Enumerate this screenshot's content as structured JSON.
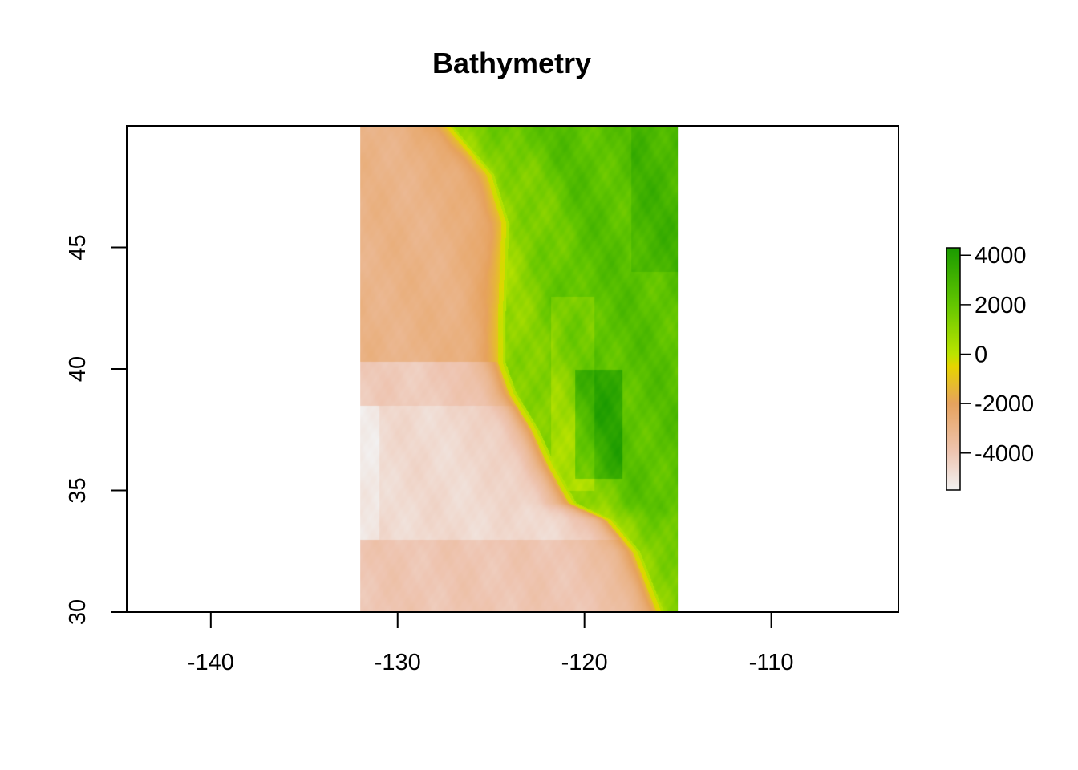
{
  "chart_data": {
    "type": "heatmap",
    "title": "Bathymetry",
    "xlabel": "",
    "ylabel": "",
    "xlim": [
      -144.5,
      -103.2
    ],
    "ylim": [
      30,
      50
    ],
    "x_ticks": [
      -140,
      -130,
      -120,
      -110
    ],
    "y_ticks": [
      30,
      35,
      40,
      45
    ],
    "raster_extent": {
      "xmin": -132,
      "xmax": -115,
      "ymin": 30,
      "ymax": 50
    },
    "color_scale": {
      "min": -5500,
      "max": 4300,
      "ticks": [
        4000,
        2000,
        0,
        -2000,
        -4000
      ],
      "stops": [
        {
          "value": -5500,
          "color": "#f2f2f2"
        },
        {
          "value": -4000,
          "color": "#eec5b2"
        },
        {
          "value": -2000,
          "color": "#e6a25d"
        },
        {
          "value": -500,
          "color": "#e6d400"
        },
        {
          "value": 0,
          "color": "#bbe300"
        },
        {
          "value": 2000,
          "color": "#63c600"
        },
        {
          "value": 4300,
          "color": "#1a9a00"
        }
      ]
    },
    "legend_placement": "right",
    "grid": false
  }
}
